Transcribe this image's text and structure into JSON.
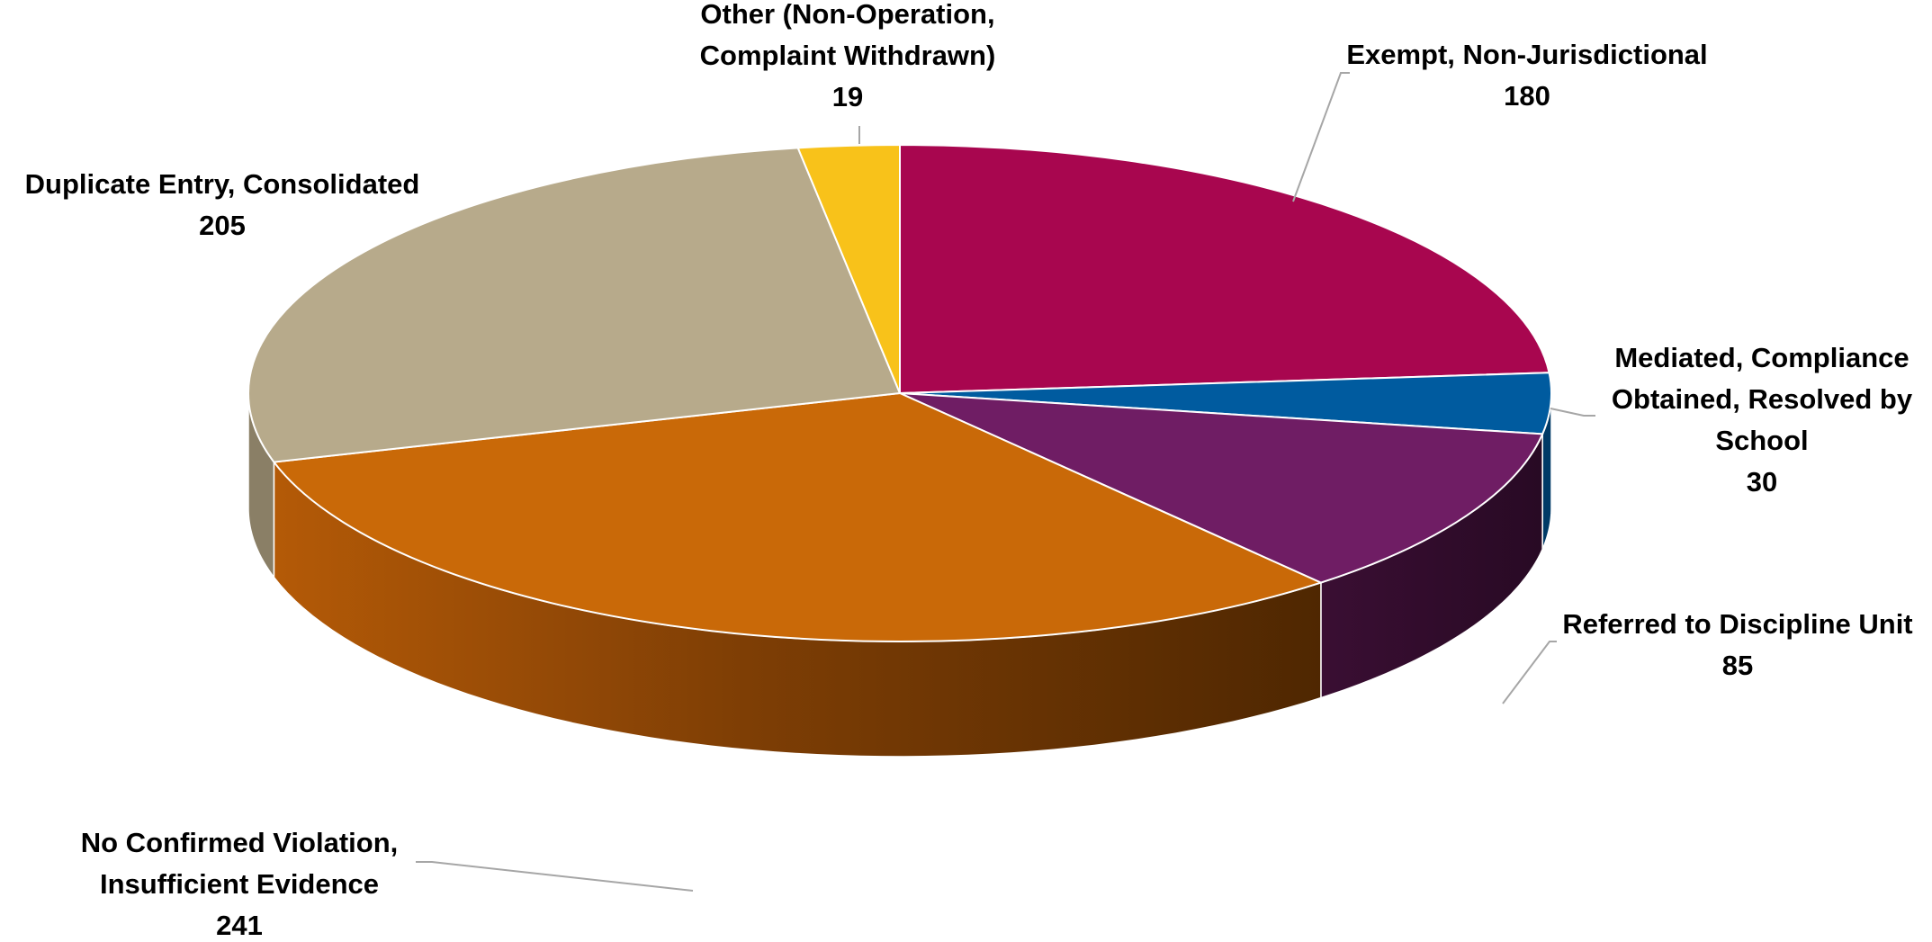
{
  "chart_data": {
    "type": "pie",
    "style": "3d-exploded-none",
    "title": "",
    "slices": [
      {
        "label_lines": [
          "Exempt, Non-Jurisdictional"
        ],
        "label": "Exempt, Non-Jurisdictional",
        "value": 180,
        "color": "#a8064f"
      },
      {
        "label_lines": [
          "Mediated, Compliance",
          "Obtained, Resolved by",
          "School"
        ],
        "label": "Mediated, Compliance Obtained, Resolved by School",
        "value": 30,
        "color": "#005b9f"
      },
      {
        "label_lines": [
          "Referred to Discipline Unit"
        ],
        "label": "Referred to Discipline Unit",
        "value": 85,
        "color": "#6f1d64"
      },
      {
        "label_lines": [
          "No Confirmed Violation,",
          "Insufficient Evidence"
        ],
        "label": "No Confirmed Violation, Insufficient Evidence",
        "value": 241,
        "color": "#c96908"
      },
      {
        "label_lines": [
          "Duplicate Entry, Consolidated"
        ],
        "label": "Duplicate Entry, Consolidated",
        "value": 205,
        "color": "#b7aa8b"
      },
      {
        "label_lines": [
          "Other (Non-Operation,",
          "Complaint Withdrawn)"
        ],
        "label": "Other (Non-Operation, Complaint Withdrawn)",
        "value": 19,
        "color": "#f8c21a"
      }
    ],
    "legend": "none",
    "data_labels": "outside with leader lines"
  }
}
